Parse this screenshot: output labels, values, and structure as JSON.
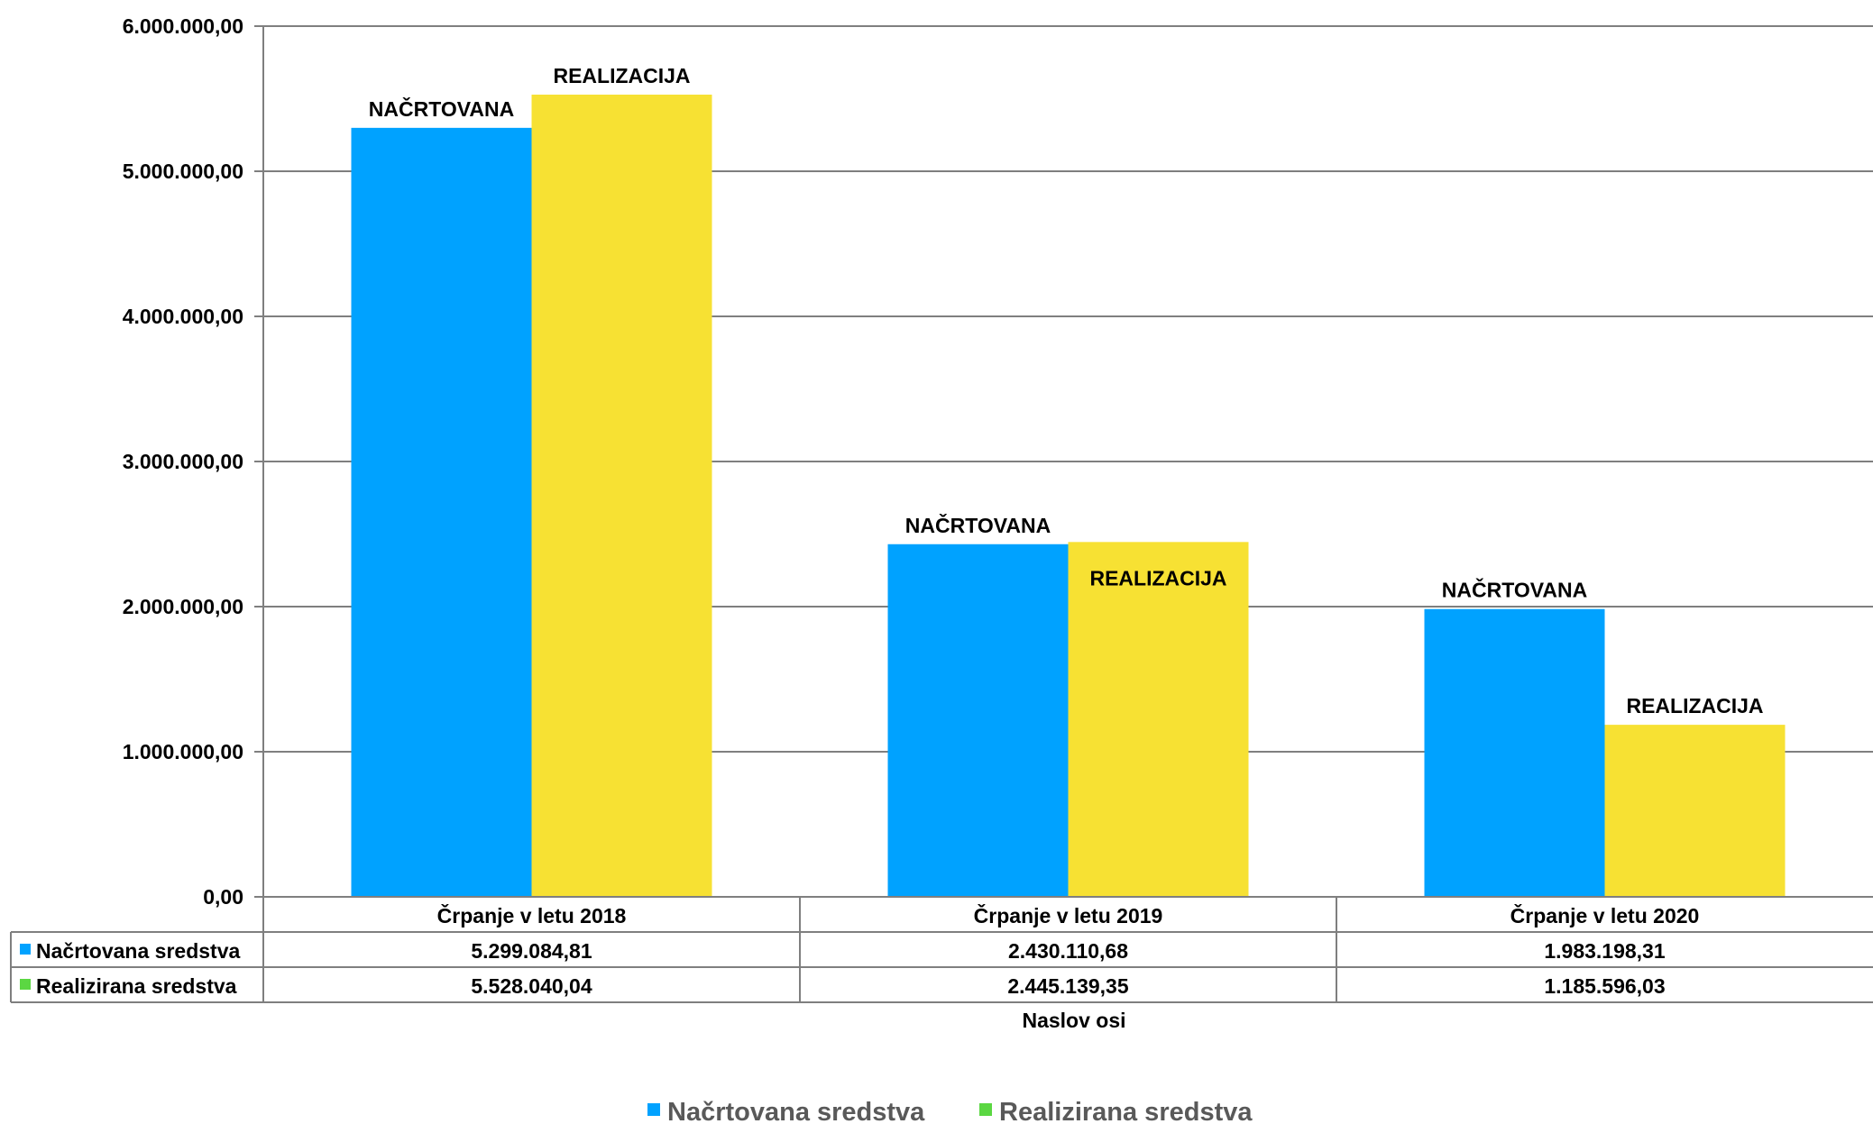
{
  "chart_data": {
    "type": "bar",
    "categories": [
      "Črpanje v letu 2018",
      "Črpanje v letu 2019",
      "Črpanje v letu 2020"
    ],
    "series": [
      {
        "name": "Načrtovana sredstva",
        "values": [
          5299084.81,
          2430110.68,
          1983198.31
        ],
        "value_labels": [
          "5.299.084,81",
          "2.430.110,68",
          "1.983.198,31"
        ],
        "data_label": "NAČRTOVANA",
        "bar_color": "#00A2FF",
        "legend_color": "#00A2FF"
      },
      {
        "name": "Realizirana sredstva",
        "values": [
          5528040.04,
          2445139.35,
          1185596.03
        ],
        "value_labels": [
          "5.528.040,04",
          "2.445.139,35",
          "1.185.596,03"
        ],
        "data_label": "REALIZACIJA",
        "bar_color": "#F7E133",
        "legend_color": "#5BD742"
      }
    ],
    "ylim": [
      0,
      6000000
    ],
    "ytick_values": [
      0,
      1000000,
      2000000,
      3000000,
      4000000,
      5000000,
      6000000
    ],
    "ytick_labels": [
      "0,00",
      "1.000.000,00",
      "2.000.000,00",
      "3.000.000,00",
      "4.000.000,00",
      "5.000.000,00",
      "6.000.000,00"
    ],
    "xlabel": "Naslov osi",
    "grid": true,
    "legend_position": "bottom",
    "data_table": true
  }
}
